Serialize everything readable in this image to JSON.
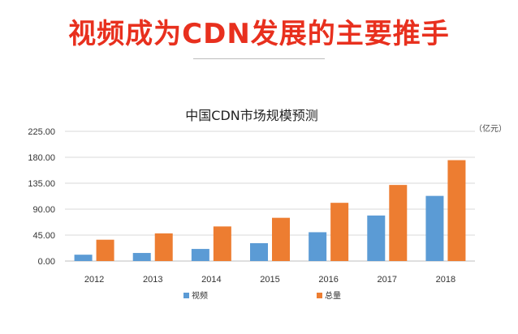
{
  "header": {
    "title": "视频成为CDN发展的主要推手"
  },
  "chart_data": {
    "type": "bar",
    "title": "中国CDN市场规模预测",
    "unit": "（亿元）",
    "categories": [
      "2012",
      "2013",
      "2014",
      "2015",
      "2016",
      "2017",
      "2018"
    ],
    "series": [
      {
        "name": "视频",
        "color": "#5b9bd5",
        "values": [
          11,
          14,
          21,
          31,
          50,
          79,
          113
        ]
      },
      {
        "name": "总量",
        "color": "#ed7d31",
        "values": [
          37,
          48,
          60,
          75,
          101,
          132,
          175
        ]
      }
    ],
    "ylim": [
      0,
      225
    ],
    "yticks": [
      "0.00",
      "45.00",
      "90.00",
      "135.00",
      "180.00",
      "225.00"
    ],
    "grid": true,
    "legend_position": "bottom"
  }
}
